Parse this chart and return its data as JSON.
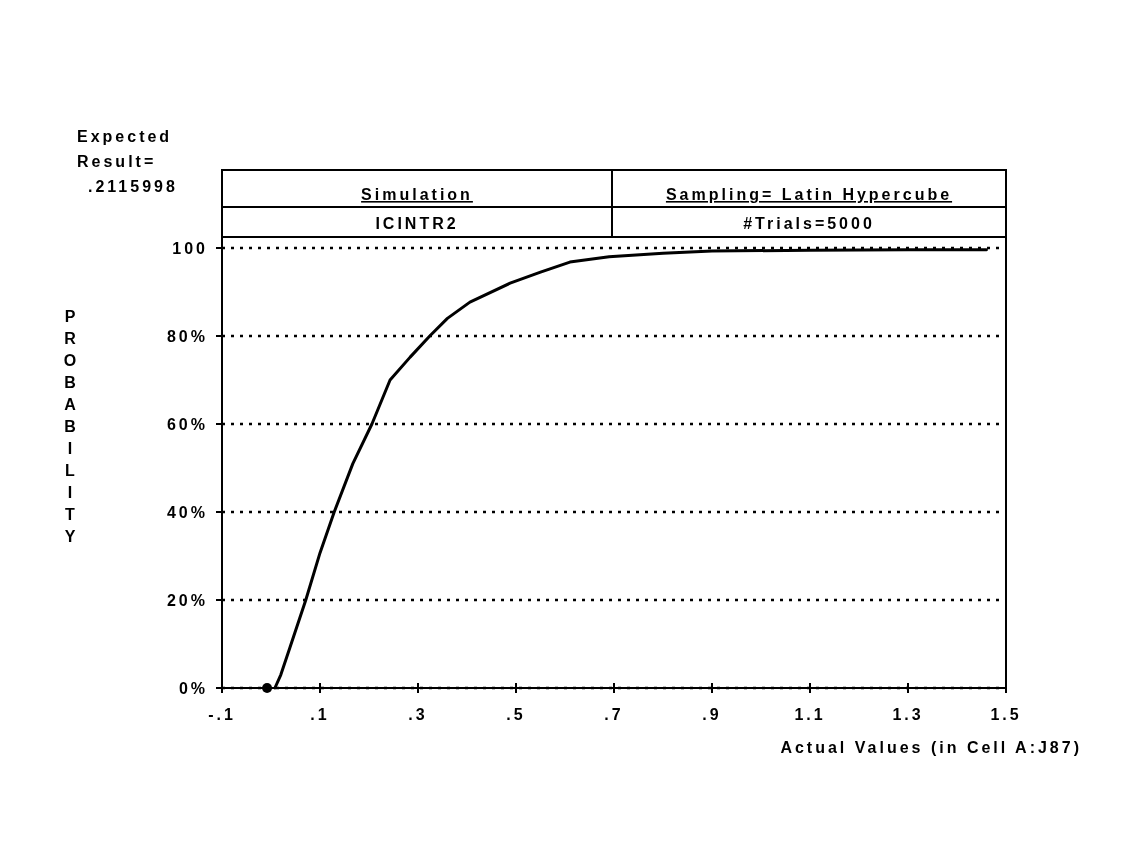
{
  "chart_data": {
    "type": "line",
    "title": "Simulation",
    "subtitle": "Sampling= Latin Hypercube",
    "annotations": [
      "ICINTR2",
      "#Trials=5000",
      "Expected\nResult=\n.2115998"
    ],
    "xlabel": "Actual Values (in Cell A:J87)",
    "ylabel": "PROBABILITY",
    "series": [
      {
        "color": "#000000",
        "x": [
          0.008,
          0.02,
          0.039,
          0.071,
          0.1,
          0.129,
          0.167,
          0.206,
          0.243,
          0.284,
          0.324,
          0.36,
          0.406,
          0.488,
          0.55,
          0.61,
          0.69,
          0.8,
          0.9,
          1.1,
          1.3,
          1.46
        ],
        "values": [
          0,
          3,
          9.3,
          20,
          30.7,
          40,
          51,
          60,
          70,
          75.2,
          80,
          84,
          87.7,
          92,
          94.5,
          96.8,
          98,
          98.8,
          99.3,
          99.5,
          99.6,
          99.6
        ]
      },
      {
        "type": "scatter",
        "color": "#000000",
        "x": [
          -0.008
        ],
        "values": [
          0
        ]
      }
    ],
    "xlim": [
      -0.1,
      1.5
    ],
    "ylim": [
      0,
      102.5
    ],
    "xticks": [
      {
        "value": -0.1,
        "label": "-.1"
      },
      {
        "value": 0.1,
        "label": ".1"
      },
      {
        "value": 0.3,
        "label": ".3"
      },
      {
        "value": 0.5,
        "label": ".5"
      },
      {
        "value": 0.7,
        "label": ".7"
      },
      {
        "value": 0.9,
        "label": ".9"
      },
      1.1,
      1.3,
      1.5
    ],
    "yticks": [
      {
        "value": 0,
        "label": "0%"
      },
      {
        "value": 20,
        "label": "20%"
      },
      {
        "value": 40,
        "label": "40%"
      },
      {
        "value": 60,
        "label": "60%"
      },
      {
        "value": 80,
        "label": "80%"
      },
      100
    ],
    "grid": "y",
    "line_style": "solid"
  }
}
